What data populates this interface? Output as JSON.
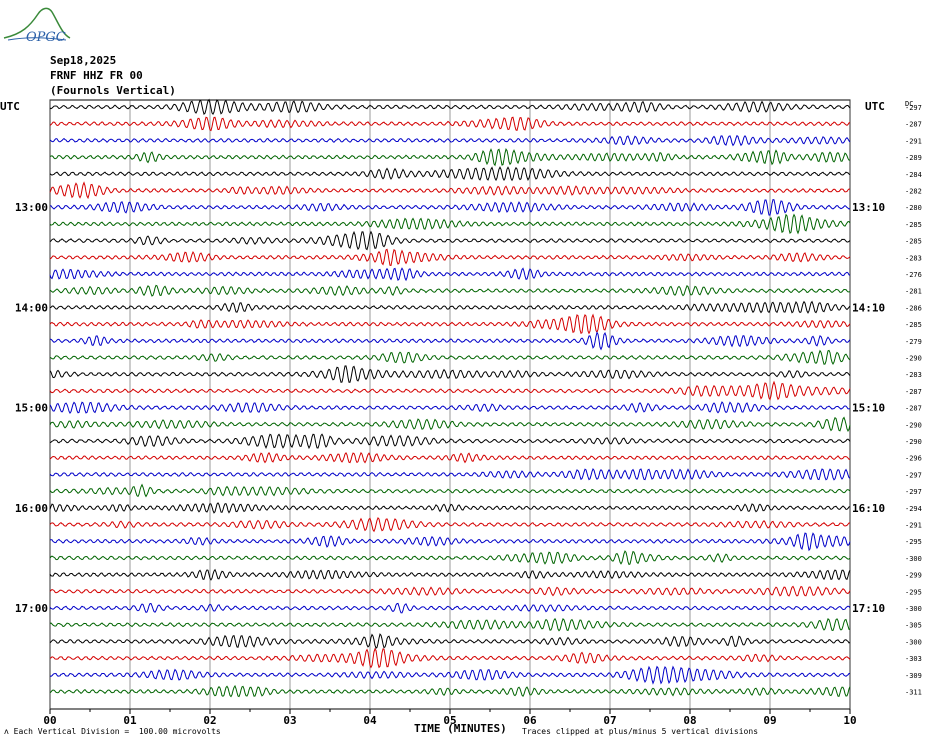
{
  "header": {
    "logo_text": "OPGC",
    "date": "Sep18,2025",
    "station": "FRNF HHZ FR 00",
    "location": "(Fournols Vertical)"
  },
  "footer": {
    "vertical_division": "Each Vertical Division =  100.00 microvolts",
    "clip_note": "Traces clipped at plus/minus 5 vertical divisions"
  },
  "chart_data": {
    "type": "line",
    "title": "",
    "xlabel": "TIME (MINUTES)",
    "x_tick_labels": [
      "00",
      "01",
      "02",
      "03",
      "04",
      "05",
      "06",
      "07",
      "08",
      "09",
      "10"
    ],
    "xlim": [
      0,
      10
    ],
    "left_axis_label": "UTC",
    "right_axis_label": "UTC",
    "dc_label": "DC",
    "left_hour_labels": [
      {
        "row": 6,
        "label": "13:00"
      },
      {
        "row": 12,
        "label": "14:00"
      },
      {
        "row": 18,
        "label": "15:00"
      },
      {
        "row": 24,
        "label": "16:00"
      },
      {
        "row": 30,
        "label": "17:00"
      }
    ],
    "right_hour_labels": [
      {
        "row": 6,
        "label": "13:10"
      },
      {
        "row": 12,
        "label": "14:10"
      },
      {
        "row": 18,
        "label": "15:10"
      },
      {
        "row": 24,
        "label": "16:10"
      },
      {
        "row": 30,
        "label": "17:10"
      }
    ],
    "trace_colors": [
      "#000000",
      "#d40000",
      "#0000c8",
      "#006400"
    ],
    "dc_offsets": [
      -297,
      -287,
      -291,
      -289,
      -284,
      -282,
      -280,
      -285,
      -285,
      -283,
      -276,
      -281,
      -286,
      -285,
      -279,
      -290,
      -283,
      -287,
      -287,
      -290,
      -290,
      -296,
      -297,
      -297,
      -294,
      -291,
      -295,
      -300,
      -299,
      -295,
      -300,
      -305,
      -300,
      -303,
      -309,
      -311
    ],
    "event_rows": [
      {
        "row": 3,
        "minute": 5.6,
        "note": "burst"
      },
      {
        "row": 6,
        "minute": 9.0
      },
      {
        "row": 8,
        "minute": 4.0
      },
      {
        "row": 13,
        "minute": 6.7
      },
      {
        "row": 33,
        "minute": 4.1
      }
    ],
    "grid": true,
    "clip_divisions": 5
  }
}
